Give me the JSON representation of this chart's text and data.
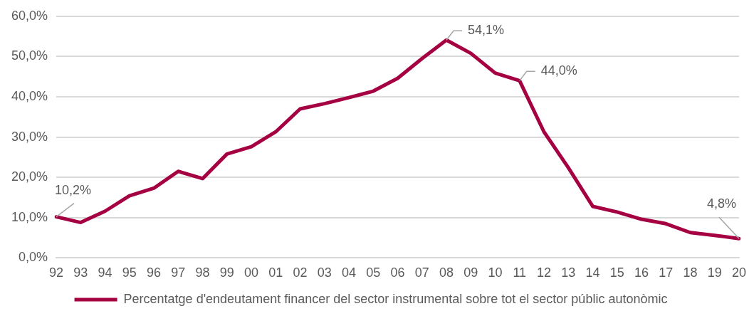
{
  "chart_data": {
    "type": "line",
    "categories": [
      "92",
      "93",
      "94",
      "95",
      "96",
      "97",
      "98",
      "99",
      "00",
      "01",
      "02",
      "03",
      "04",
      "05",
      "06",
      "07",
      "08",
      "09",
      "10",
      "11",
      "12",
      "13",
      "14",
      "15",
      "16",
      "17",
      "18",
      "19",
      "20"
    ],
    "series": [
      {
        "name": "Percentatge d'endeutament financer del sector instrumental sobre tot el sector públic autonòmic",
        "color": "#a50042",
        "values": [
          10.2,
          8.8,
          11.6,
          15.4,
          17.3,
          21.5,
          19.7,
          25.8,
          27.6,
          31.3,
          37.0,
          38.3,
          39.8,
          41.4,
          44.6,
          49.5,
          54.1,
          50.8,
          45.9,
          44.0,
          31.3,
          22.4,
          12.8,
          11.4,
          9.6,
          8.5,
          6.3,
          5.6,
          4.8
        ],
        "value_labels": [
          "10,2%",
          null,
          null,
          null,
          null,
          null,
          null,
          null,
          null,
          null,
          null,
          null,
          null,
          null,
          null,
          null,
          "54,1%",
          null,
          null,
          "44,0%",
          null,
          null,
          null,
          null,
          null,
          null,
          null,
          null,
          "4,8%"
        ]
      }
    ],
    "ylim": [
      0,
      60
    ],
    "yticks": [
      {
        "value": 0,
        "label": "0,0%"
      },
      {
        "value": 10,
        "label": "10,0%"
      },
      {
        "value": 20,
        "label": "20,0%"
      },
      {
        "value": 30,
        "label": "30,0%"
      },
      {
        "value": 40,
        "label": "40,0%"
      },
      {
        "value": 50,
        "label": "50,0%"
      },
      {
        "value": 60,
        "label": "60,0%"
      }
    ],
    "grid": "y",
    "legend": "bottom",
    "marker": "none",
    "line_style": "solid"
  }
}
